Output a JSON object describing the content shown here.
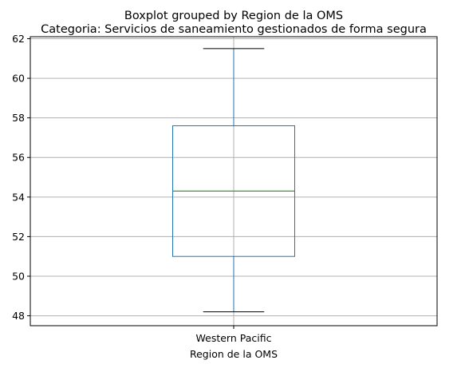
{
  "chart_data": {
    "type": "box",
    "suptitle": "Boxplot grouped by Region de la OMS",
    "title": "Categoria: Servicios de saneamiento gestionados de forma segura",
    "xlabel": "Region de la OMS",
    "ylabel": "",
    "categories": [
      "Western Pacific"
    ],
    "boxes": [
      {
        "category": "Western Pacific",
        "whislo": 48.2,
        "q1": 51.0,
        "median": 54.3,
        "q3": 57.6,
        "whishi": 61.5
      }
    ],
    "ylim": [
      47.5,
      62.1
    ],
    "yticks": [
      48,
      50,
      52,
      54,
      56,
      58,
      60,
      62
    ],
    "grid": true,
    "colors": {
      "box": "#1f77b4",
      "median": "#2ca02c",
      "grid": "#b0b0b0",
      "whisker_cap": "#000000"
    }
  }
}
